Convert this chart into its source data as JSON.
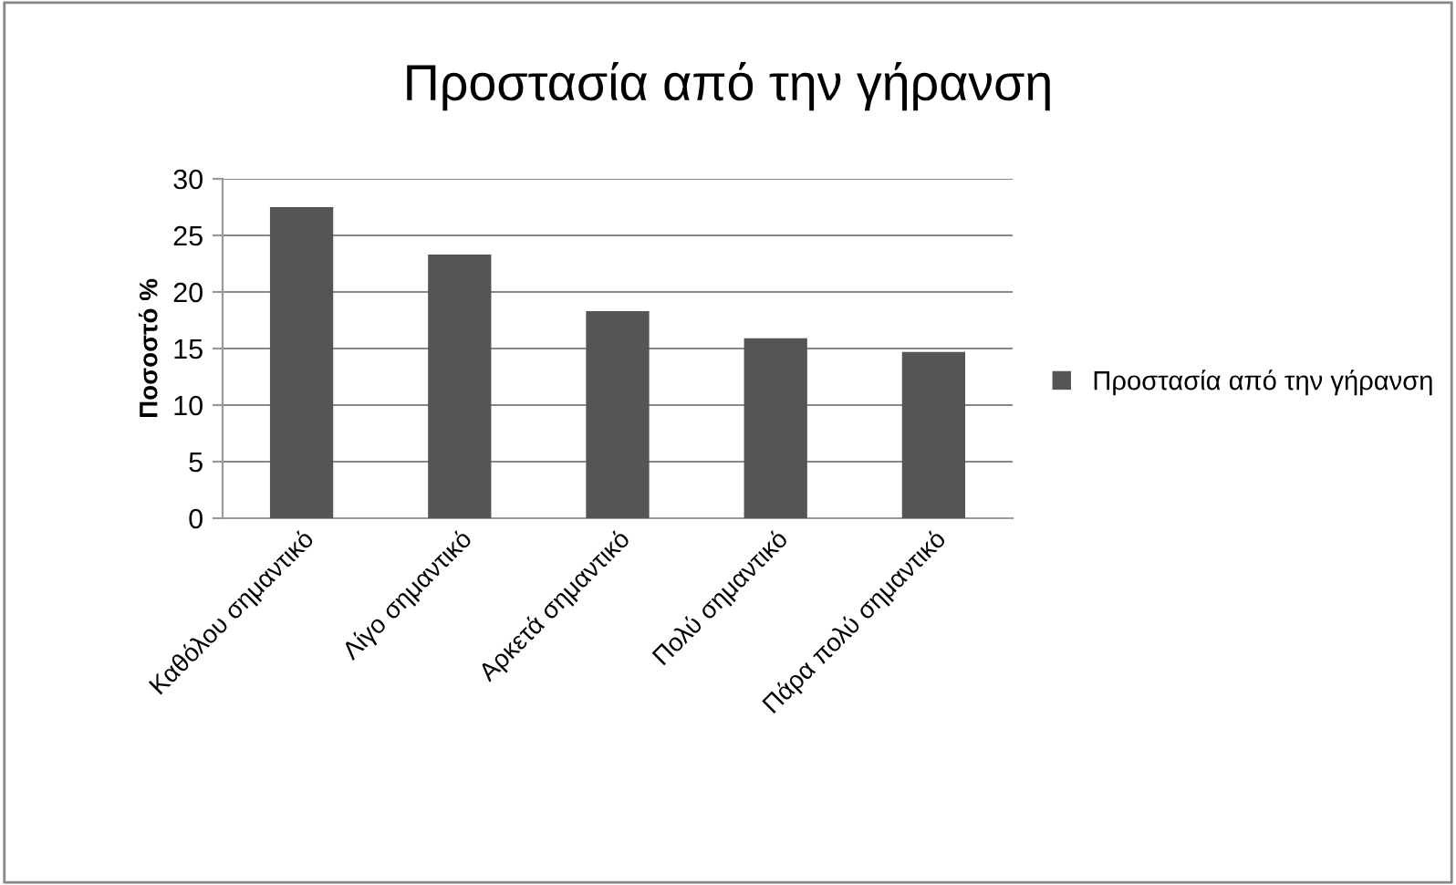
{
  "chart_data": {
    "type": "bar",
    "title": "Προστασία από την γήρανση",
    "ylabel": "Ποσοστό %",
    "categories": [
      "Καθόλου σημαντικό",
      "Λίγο σημαντικό",
      "Αρκετά σημαντικό",
      "Πολύ σημαντικό",
      "Πάρα πολύ σημαντικό"
    ],
    "series": [
      {
        "name": "Προστασία από την γήρανση",
        "color": "#555555",
        "values": [
          27.5,
          23.3,
          18.3,
          15.9,
          14.7
        ]
      }
    ],
    "ylim": [
      0,
      30
    ],
    "yticks": [
      0,
      5,
      10,
      15,
      20,
      25,
      30
    ],
    "grid": "y",
    "legend": "right"
  }
}
